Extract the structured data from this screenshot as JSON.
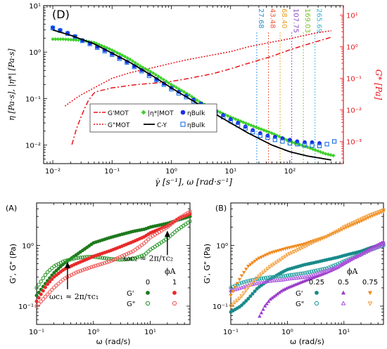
{
  "chart_data": [
    {
      "panel": "(D)",
      "type": "scatter",
      "x_scale": "log",
      "y_scale": "log",
      "y2_scale": "log",
      "xlabel": "γ̇ [s⁻¹], ω [rad·s⁻¹]",
      "ylabel": "η [Pa·s], |η*| [Pa·s]",
      "y2label": "G* [Pa]",
      "xlim": [
        0.007,
        800
      ],
      "ylim": [
        0.004,
        10
      ],
      "y2lim": [
        0.0002,
        20
      ],
      "x_ticks": [
        "10⁻²",
        "10⁻¹",
        "10⁰",
        "10¹",
        "10²"
      ],
      "y_ticks": [
        "10⁻²",
        "10⁻¹",
        "10⁰",
        "10¹"
      ],
      "y2_ticks": [
        "10⁻³",
        "10⁻²",
        "10⁻¹",
        "10⁰",
        "10¹"
      ],
      "legend_position": "lower-left",
      "vlines": [
        {
          "label": "27.68",
          "x": 27.68,
          "color": "#2a8fd0"
        },
        {
          "label": "43.48",
          "x": 43.48,
          "color": "#e8553d"
        },
        {
          "label": "68.40",
          "x": 68.4,
          "color": "#e8a020"
        },
        {
          "label": "107.75",
          "x": 107.75,
          "color": "#8a4ac8"
        },
        {
          "label": "169.03",
          "x": 169.03,
          "color": "#7bbf2a"
        },
        {
          "label": "265.69",
          "x": 265.69,
          "color": "#39b4cf"
        }
      ],
      "series": [
        {
          "name": "G'MOT",
          "axis": "right",
          "style": "dash-dot",
          "color": "#e8141a",
          "x": [
            0.021,
            0.025,
            0.03,
            0.035,
            0.04,
            0.05,
            0.06,
            0.08,
            0.1,
            0.15,
            0.2,
            0.3,
            0.5,
            1,
            2,
            5,
            10,
            20,
            50,
            100,
            200,
            500
          ],
          "y": [
            0.0008,
            0.0025,
            0.006,
            0.012,
            0.02,
            0.035,
            0.04,
            0.045,
            0.05,
            0.055,
            0.06,
            0.065,
            0.07,
            0.08,
            0.1,
            0.14,
            0.2,
            0.3,
            0.5,
            0.8,
            1.2,
            2
          ]
        },
        {
          "name": "G\"MOT",
          "axis": "right",
          "style": "dotted",
          "color": "#e8141a",
          "x": [
            0.015,
            0.02,
            0.03,
            0.05,
            0.08,
            0.1,
            0.2,
            0.3,
            0.5,
            1,
            2,
            5,
            10,
            20,
            50,
            100,
            200,
            300,
            500
          ],
          "y": [
            0.012,
            0.018,
            0.03,
            0.05,
            0.08,
            0.1,
            0.15,
            0.18,
            0.22,
            0.3,
            0.4,
            0.55,
            0.7,
            1.0,
            1.4,
            1.8,
            2.4,
            2.8,
            3.2
          ]
        },
        {
          "name": "|η*|MOT",
          "axis": "left",
          "style": "markers",
          "marker": "diamond",
          "color": "#3fd12a",
          "x": [
            0.01,
            0.015,
            0.02,
            0.03,
            0.05,
            0.08,
            0.1,
            0.15,
            0.2,
            0.3,
            0.5,
            1,
            2,
            3,
            5,
            10,
            20,
            50,
            100,
            200,
            400,
            600
          ],
          "y": [
            1.9,
            1.9,
            1.85,
            1.8,
            1.6,
            1.25,
            1.1,
            0.85,
            0.7,
            0.5,
            0.35,
            0.2,
            0.12,
            0.085,
            0.06,
            0.04,
            0.028,
            0.018,
            0.012,
            0.009,
            0.0065,
            0.0058
          ]
        },
        {
          "name": "ηBulk",
          "axis": "left",
          "style": "markers",
          "marker": "filled-circle",
          "color": "#1a2ee6",
          "x": [
            0.01,
            0.0133,
            0.0178,
            0.0237,
            0.0316,
            0.0422,
            0.0562,
            0.075,
            0.1,
            0.133,
            0.178,
            0.237,
            0.316,
            0.422,
            0.562,
            0.75,
            1,
            1.33,
            1.78,
            2.37,
            3.16,
            4.22,
            5.62,
            7.5,
            10,
            13.3,
            17.8,
            23.7,
            31.6,
            42.2,
            56.2,
            75,
            100,
            133,
            178,
            237,
            316
          ],
          "y": [
            3.4,
            3.0,
            2.6,
            2.2,
            1.8,
            1.55,
            1.3,
            1.1,
            0.92,
            0.76,
            0.62,
            0.5,
            0.41,
            0.33,
            0.26,
            0.21,
            0.17,
            0.14,
            0.115,
            0.095,
            0.078,
            0.064,
            0.053,
            0.044,
            0.036,
            0.03,
            0.025,
            0.021,
            0.018,
            0.016,
            0.015,
            0.014,
            0.013,
            0.012,
            0.0115,
            0.0115,
            0.011
          ]
        },
        {
          "name": "ηBulk",
          "axis": "left",
          "style": "markers",
          "marker": "open-square",
          "color": "#1a6fe6",
          "x": [
            0.01,
            0.0133,
            0.0178,
            0.0237,
            0.0316,
            0.0422,
            0.0562,
            0.075,
            0.1,
            0.133,
            0.178,
            0.237,
            0.316,
            0.422,
            0.562,
            0.75,
            1,
            1.33,
            1.78,
            2.37,
            3.16,
            4.22,
            5.62,
            7.5,
            10,
            13.3,
            17.8,
            23.7,
            31.6,
            42.2,
            56.2,
            75,
            100,
            133,
            178,
            237,
            316,
            422,
            562
          ],
          "y": [
            3.3,
            2.9,
            2.5,
            2.15,
            1.75,
            1.5,
            1.25,
            1.05,
            0.88,
            0.72,
            0.6,
            0.48,
            0.39,
            0.31,
            0.25,
            0.2,
            0.16,
            0.13,
            0.108,
            0.088,
            0.072,
            0.059,
            0.048,
            0.04,
            0.033,
            0.027,
            0.023,
            0.019,
            0.016,
            0.0145,
            0.013,
            0.012,
            0.011,
            0.0105,
            0.01,
            0.0098,
            0.0096,
            0.0105,
            0.012
          ]
        },
        {
          "name": "C-Y",
          "axis": "left",
          "style": "solid",
          "color": "#000000",
          "x": [
            0.01,
            0.02,
            0.05,
            0.1,
            0.2,
            0.5,
            1,
            2,
            5,
            10,
            20,
            50,
            100,
            200,
            500
          ],
          "y": [
            3.0,
            2.3,
            1.5,
            0.95,
            0.6,
            0.3,
            0.17,
            0.1,
            0.05,
            0.03,
            0.018,
            0.01,
            0.0072,
            0.0058,
            0.0048
          ]
        }
      ]
    },
    {
      "panel": "(A)",
      "type": "scatter",
      "x_scale": "log",
      "y_scale": "log",
      "xlabel": "ω (rad/s)",
      "ylabel": "G', G\" (Pa)",
      "xlim": [
        0.1,
        50
      ],
      "ylim": [
        0.05,
        5
      ],
      "x_ticks": [
        "10⁻¹",
        "10⁰",
        "10¹"
      ],
      "y_ticks": [
        "10⁻¹",
        "10⁰"
      ],
      "legend_title": "ϕA",
      "legend_columns": [
        "0",
        "1"
      ],
      "legend_rows": [
        "G'",
        "G\""
      ],
      "legend_position": "lower-right",
      "annotations": [
        {
          "text": "ωc₁ ≈ 2π/τc₁",
          "arrow_x": 0.35,
          "arrow_y": 0.55
        },
        {
          "text": "ωc₂ ≈ 2π/τc₂",
          "arrow_x": 20,
          "arrow_y": 1.8
        }
      ],
      "series": [
        {
          "name": "G'",
          "phi_A": "0",
          "marker": "filled-circle",
          "color": "#1e7a1e",
          "x": [
            0.1,
            0.15,
            0.2,
            0.3,
            0.5,
            0.8,
            1,
            2,
            3,
            5,
            8,
            10,
            20,
            30,
            50
          ],
          "y": [
            0.15,
            0.25,
            0.35,
            0.5,
            0.7,
            0.95,
            1.1,
            1.35,
            1.5,
            1.7,
            1.85,
            2.0,
            2.3,
            2.6,
            3.0
          ]
        },
        {
          "name": "G\"",
          "phi_A": "0",
          "marker": "open-circle",
          "color": "#2f9a2f",
          "x": [
            0.1,
            0.15,
            0.2,
            0.3,
            0.5,
            0.8,
            1,
            2,
            3,
            5,
            8,
            10,
            20,
            30,
            50
          ],
          "y": [
            0.2,
            0.35,
            0.45,
            0.55,
            0.62,
            0.65,
            0.65,
            0.6,
            0.58,
            0.6,
            0.7,
            0.85,
            1.3,
            1.8,
            2.5
          ]
        },
        {
          "name": "G'",
          "phi_A": "1",
          "marker": "filled-circle",
          "color": "#e82a2a",
          "x": [
            0.1,
            0.15,
            0.2,
            0.3,
            0.5,
            0.8,
            1,
            2,
            3,
            5,
            8,
            10,
            20,
            30,
            50
          ],
          "y": [
            0.12,
            0.22,
            0.3,
            0.4,
            0.5,
            0.6,
            0.66,
            0.82,
            0.95,
            1.15,
            1.4,
            1.6,
            2.1,
            2.7,
            3.3
          ]
        },
        {
          "name": "G\"",
          "phi_A": "1",
          "marker": "open-circle",
          "color": "#f05a5a",
          "x": [
            0.1,
            0.15,
            0.2,
            0.3,
            0.5,
            0.8,
            1,
            2,
            3,
            5,
            8,
            10,
            20,
            30,
            50
          ],
          "y": [
            0.1,
            0.15,
            0.2,
            0.28,
            0.36,
            0.42,
            0.45,
            0.55,
            0.65,
            0.8,
            1.1,
            1.35,
            2.0,
            2.7,
            3.6
          ]
        }
      ]
    },
    {
      "panel": "(B)",
      "type": "scatter",
      "x_scale": "log",
      "y_scale": "log",
      "xlabel": "ω (rad/s)",
      "ylabel": "G', G\" (Pa)",
      "xlim": [
        0.1,
        50
      ],
      "ylim": [
        0.05,
        5
      ],
      "x_ticks": [
        "10⁻¹",
        "10⁰",
        "10¹"
      ],
      "y_ticks": [
        "10⁻¹",
        "10⁰"
      ],
      "legend_title": "ϕA",
      "legend_columns": [
        "0.25",
        "0.5",
        "0.75"
      ],
      "legend_rows": [
        "G'",
        "G\""
      ],
      "legend_position": "lower-right",
      "series": [
        {
          "name": "G'",
          "phi_A": "0.25",
          "marker": "filled-circle",
          "color": "#1b8a8a",
          "x": [
            0.1,
            0.15,
            0.2,
            0.3,
            0.5,
            0.8,
            1,
            2,
            3,
            5,
            8,
            10,
            20,
            30,
            50
          ],
          "y": [
            0.08,
            0.1,
            0.13,
            0.2,
            0.28,
            0.36,
            0.4,
            0.48,
            0.52,
            0.58,
            0.64,
            0.68,
            0.8,
            0.92,
            1.05
          ]
        },
        {
          "name": "G\"",
          "phi_A": "0.25",
          "marker": "open-circle",
          "color": "#2aa0a0",
          "x": [
            0.1,
            0.15,
            0.2,
            0.3,
            0.5,
            0.8,
            1,
            2,
            3,
            5,
            8,
            10,
            20,
            30,
            50
          ],
          "y": [
            0.2,
            0.24,
            0.26,
            0.28,
            0.3,
            0.31,
            0.32,
            0.35,
            0.38,
            0.42,
            0.5,
            0.55,
            0.72,
            0.85,
            1.0
          ]
        },
        {
          "name": "G'",
          "phi_A": "0.5",
          "marker": "filled-triangle",
          "color": "#9a3ac8",
          "x": [
            0.3,
            0.4,
            0.5,
            0.8,
            1,
            2,
            3,
            5,
            8,
            10,
            20,
            30,
            50
          ],
          "y": [
            0.06,
            0.1,
            0.13,
            0.18,
            0.2,
            0.26,
            0.3,
            0.36,
            0.44,
            0.5,
            0.72,
            0.9,
            1.15
          ]
        },
        {
          "name": "G\"",
          "phi_A": "0.5",
          "marker": "open-triangle",
          "color": "#b05ae0",
          "x": [
            0.1,
            0.15,
            0.2,
            0.3,
            0.5,
            0.8,
            1,
            2,
            3,
            5,
            8,
            10,
            20,
            30,
            50
          ],
          "y": [
            0.18,
            0.2,
            0.22,
            0.24,
            0.26,
            0.27,
            0.28,
            0.3,
            0.33,
            0.38,
            0.46,
            0.52,
            0.7,
            0.85,
            1.05
          ]
        },
        {
          "name": "G'",
          "phi_A": "0.75",
          "marker": "filled-triangle-down",
          "color": "#ee8a1e",
          "x": [
            0.1,
            0.15,
            0.2,
            0.3,
            0.5,
            0.8,
            1,
            2,
            3,
            5,
            8,
            10,
            20,
            30,
            50
          ],
          "y": [
            0.15,
            0.3,
            0.45,
            0.6,
            0.75,
            0.85,
            0.9,
            1.05,
            1.2,
            1.4,
            1.7,
            1.9,
            2.5,
            3.0,
            3.6
          ]
        },
        {
          "name": "G\"",
          "phi_A": "0.75",
          "marker": "open-triangle-down",
          "color": "#f3a040",
          "x": [
            0.1,
            0.15,
            0.2,
            0.3,
            0.5,
            0.8,
            1,
            2,
            3,
            5,
            8,
            10,
            20,
            30,
            50
          ],
          "y": [
            0.1,
            0.14,
            0.2,
            0.3,
            0.45,
            0.6,
            0.7,
            0.95,
            1.15,
            1.4,
            1.75,
            2.0,
            2.7,
            3.2,
            3.8
          ]
        }
      ]
    }
  ]
}
